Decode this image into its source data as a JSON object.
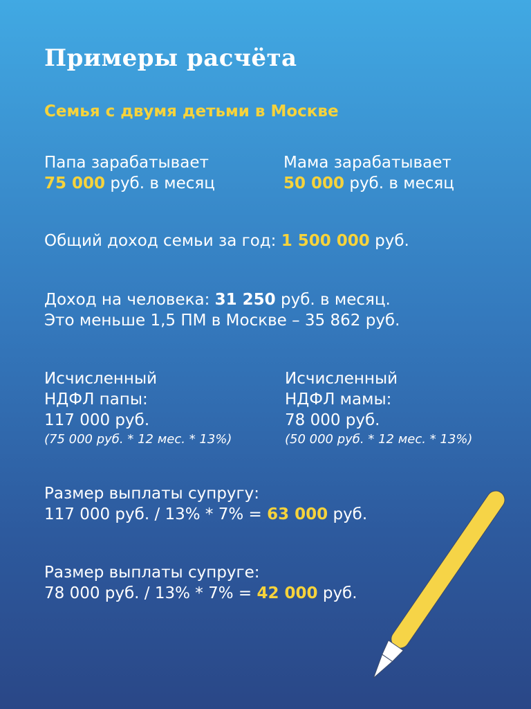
{
  "title": "Примеры расчёта",
  "subtitle": "Семья с двумя детьми в Москве",
  "dad_income": {
    "label": "Папа зарабатывает",
    "amount": "75 000",
    "suffix": "руб. в месяц"
  },
  "mom_income": {
    "label": "Мама зарабатывает",
    "amount": "50 000",
    "suffix": "руб. в месяц"
  },
  "family_income": {
    "label": "Общий доход семьи за год:",
    "amount": "1 500 000",
    "suffix": "руб."
  },
  "per_person": {
    "label": "Доход на человека:",
    "amount": "31 250",
    "suffix": "руб. в месяц.",
    "note": "Это меньше 1,5 ПМ в Москве – 35 862 руб."
  },
  "dad_tax": {
    "line1": "Исчисленный",
    "line2": "НДФЛ папы:",
    "value": "117 000 руб.",
    "formula": "(75 000 руб. * 12 мес. * 13%)"
  },
  "mom_tax": {
    "line1": "Исчисленный",
    "line2": "НДФЛ мамы:",
    "value": "78 000 руб.",
    "formula": "(50 000 руб. * 12 мес. * 13%)"
  },
  "payout_husband": {
    "label": "Размер выплаты супругу:",
    "formula": "117 000 руб. / 13% * 7% =",
    "amount": "63 000",
    "suffix": "руб."
  },
  "payout_wife": {
    "label": "Размер выплаты супруге:",
    "formula": "78 000 руб. / 13% * 7% =",
    "amount": "42 000",
    "suffix": "руб."
  },
  "colors": {
    "accent": "#f6d33c",
    "bg_top": "#41a9e3",
    "bg_bottom": "#2a4787"
  },
  "icons": {
    "decoration": "pencil-icon"
  }
}
